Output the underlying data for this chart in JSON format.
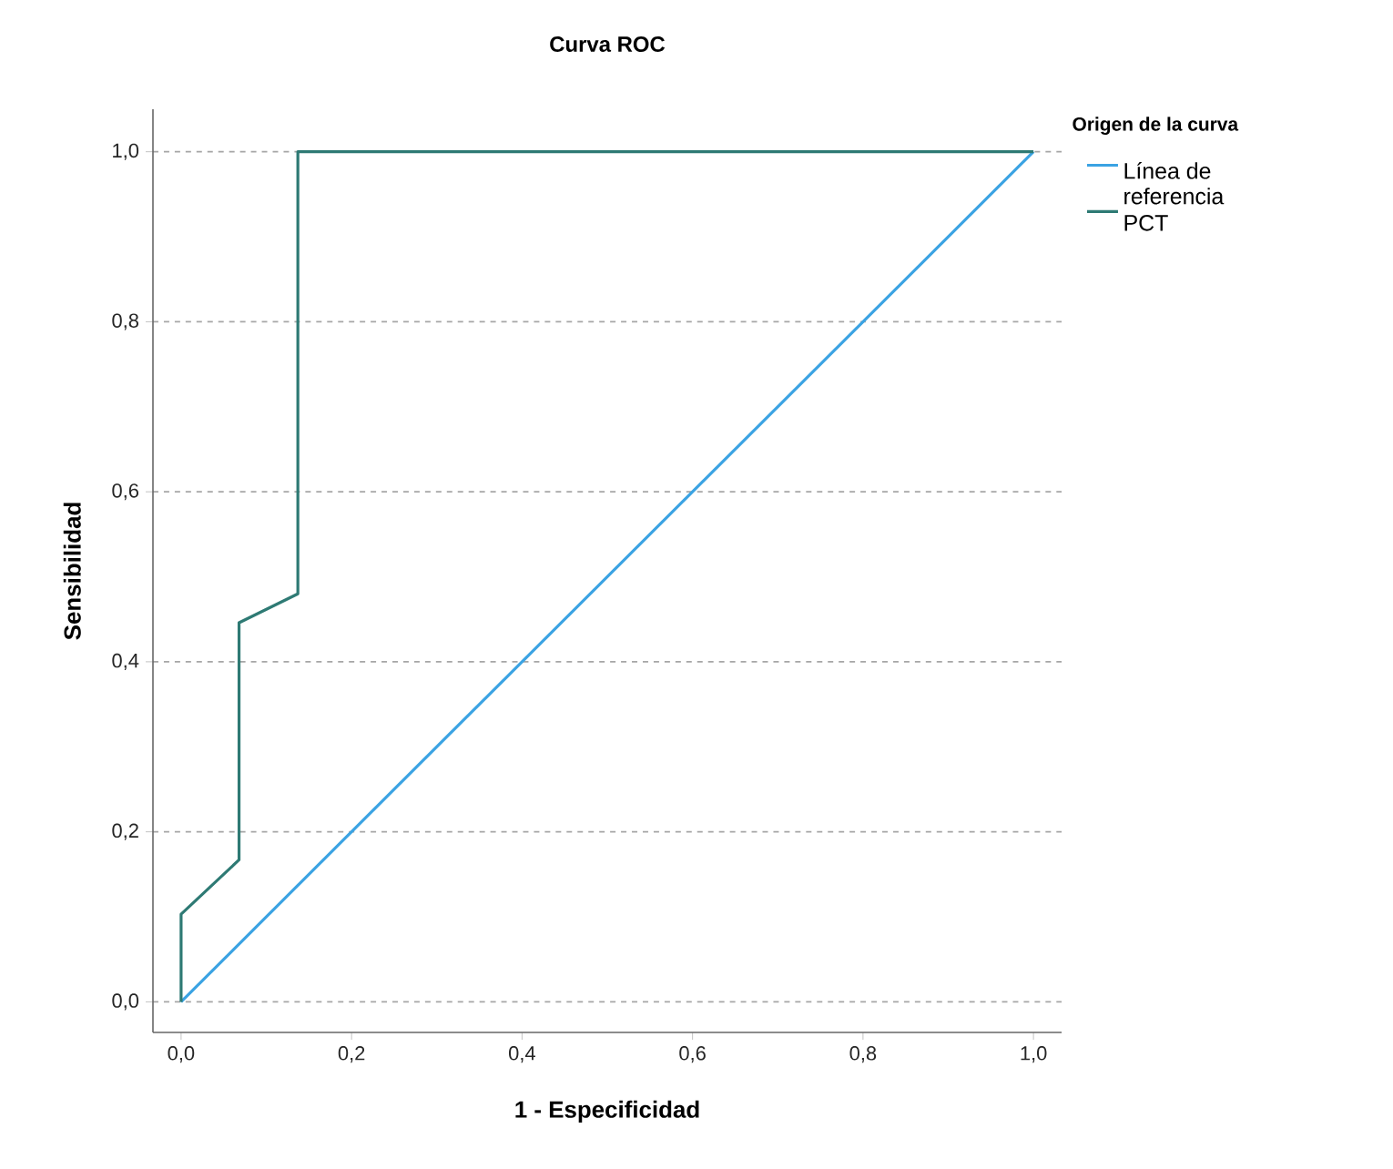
{
  "chart_data": {
    "type": "line",
    "title": "Curva ROC",
    "xlabel": "1 - Especificidad",
    "ylabel": "Sensibilidad",
    "legend_title": "Origen de la curva",
    "legend": "right",
    "grid": "y",
    "marker": "none",
    "line_style": "solid",
    "xlim": [
      -0.033,
      1.033
    ],
    "ylim": [
      -0.036,
      1.05
    ],
    "xticks": [
      {
        "value": 0,
        "label": "0,0"
      },
      {
        "value": 0.2,
        "label": "0,2"
      },
      {
        "value": 0.4,
        "label": "0,4"
      },
      {
        "value": 0.6,
        "label": "0,6"
      },
      {
        "value": 0.8,
        "label": "0,8"
      },
      {
        "value": 1,
        "label": "1,0"
      }
    ],
    "yticks": [
      {
        "value": 0,
        "label": "0,0"
      },
      {
        "value": 0.2,
        "label": "0,2"
      },
      {
        "value": 0.4,
        "label": "0,4"
      },
      {
        "value": 0.6,
        "label": "0,6"
      },
      {
        "value": 0.8,
        "label": "0,8"
      },
      {
        "value": 1,
        "label": "1,0"
      }
    ],
    "series": [
      {
        "name": "Línea de referencia",
        "color": "#3ba3e3",
        "x": [
          0,
          1
        ],
        "values": [
          0,
          1
        ]
      },
      {
        "name": "PCT",
        "color": "#2e7a74",
        "x": [
          0,
          0,
          0.068,
          0.068,
          0.137,
          0.137,
          1
        ],
        "values": [
          0,
          0.103,
          0.167,
          0.446,
          0.48,
          1,
          1
        ]
      }
    ]
  }
}
